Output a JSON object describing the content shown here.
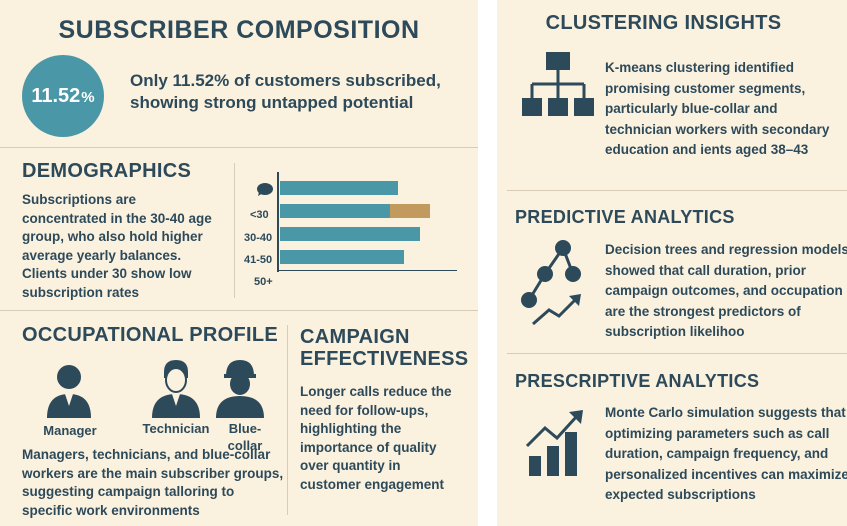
{
  "composition": {
    "title": "SUBSCRIBER COMPOSITION",
    "rate_value": "11.52",
    "rate_unit": "%",
    "description": "Only 11.52% of customers subscribed, showing strong untapped potential"
  },
  "demographics": {
    "title": "DEMOGRAPHICS",
    "text": "Subscriptions are concentrated in the 30-40 age group, who also hold higher average yearly balances. Clients under 30 show low subscription rates"
  },
  "chart_data": {
    "type": "bar",
    "orientation": "horizontal",
    "categories": [
      "<30",
      "30-40",
      "41-50",
      "50+"
    ],
    "series": [
      {
        "values": [
          59,
          55,
          70,
          62
        ]
      },
      {
        "values": [
          0,
          20,
          0,
          0
        ]
      }
    ],
    "colors": [
      "#4a97a8",
      "#c39a5e"
    ],
    "grid": false
  },
  "occupational": {
    "title": "OCCUPATIONAL PROFILE",
    "roles": [
      {
        "label": "Manager",
        "icon": "manager-icon"
      },
      {
        "label": "Technician",
        "icon": "technician-icon"
      },
      {
        "label": "Blue-\ncollar",
        "icon": "blue-collar-icon"
      }
    ],
    "text": "Managers, technicians, and blue-collar workers are the main subscriber groups, suggesting campaign talloring to specific work environments"
  },
  "campaign": {
    "title_line1": "CAMPAIGN",
    "title_line2": "EFFECTIVENESS",
    "text": "Longer calls reduce the need for follow-ups, highlighting the importance of quality over quantity in customer engagement"
  },
  "clustering": {
    "title": "CLUSTERING INSIGHTS",
    "icon": "hierarchy-icon",
    "text": "K-means clustering identified promising customer segments, particularly blue-collar and technician workers with secondary education and ients aged 38–43"
  },
  "predictive": {
    "title": "PREDICTIVE ANALYTICS",
    "icon": "decision-tree-icon",
    "text": "Decision trees and regression models showed that call duration, prior campaign outcomes, and occupation are the strongest predictors of subscription likelihoo"
  },
  "prescriptive": {
    "title": "PRESCRIPTIVE ANALYTICS",
    "icon": "growth-chart-icon",
    "text": "Monte Carlo simulation suggests that optimizing parameters such as call duration, campaign frequency, and personalized incentives can maximize expected subscriptions"
  },
  "colors": {
    "background": "#fbf1df",
    "text": "#2d4a5a",
    "accent": "#4a97a8",
    "highlight": "#c39a5e"
  }
}
